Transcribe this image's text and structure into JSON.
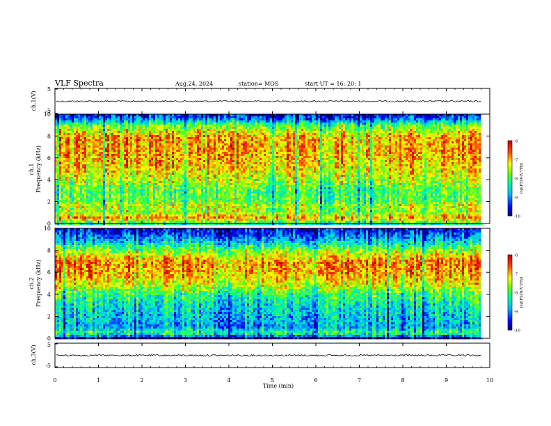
{
  "header": {
    "title": "VLF Spectra",
    "date": "Aug.24, 2024",
    "station": "station= MOS",
    "start": "start  UT =   16: 20: 1"
  },
  "chart_data": [
    {
      "type": "line",
      "ylabel": "ch.1(V)",
      "xlim": [
        0,
        10
      ],
      "ylim": [
        -5,
        5
      ],
      "y_ticks": [
        "5",
        "-5"
      ],
      "baseline": 0,
      "color": "#000000"
    },
    {
      "type": "heatmap",
      "ylabel": "ch.1\nFrequency (kHz)",
      "xlim": [
        0,
        9.8
      ],
      "ylim": [
        0,
        10
      ],
      "y_ticks": [
        "0",
        "2",
        "4",
        "6",
        "8",
        "10"
      ],
      "colorbar": {
        "label": "log(PSD)(V²/Hz)",
        "range": [
          -10,
          -6
        ],
        "ticks": [
          "-6",
          "-7",
          "-8",
          "-9",
          "-10"
        ]
      },
      "intensity_profile": [
        {
          "freq": 0.0,
          "level": -8.2
        },
        {
          "freq": 0.5,
          "level": -6.8
        },
        {
          "freq": 1.0,
          "level": -7.6
        },
        {
          "freq": 1.6,
          "level": -7.4
        },
        {
          "freq": 2.0,
          "level": -7.8
        },
        {
          "freq": 3.0,
          "level": -7.9
        },
        {
          "freq": 4.0,
          "level": -7.4
        },
        {
          "freq": 5.0,
          "level": -7.1
        },
        {
          "freq": 6.0,
          "level": -6.9
        },
        {
          "freq": 7.0,
          "level": -6.8
        },
        {
          "freq": 8.0,
          "level": -6.9
        },
        {
          "freq": 9.0,
          "level": -7.8
        },
        {
          "freq": 9.5,
          "level": -9.0
        },
        {
          "freq": 10.0,
          "level": -9.6
        }
      ]
    },
    {
      "type": "heatmap",
      "ylabel": "ch.2\nFrequency (kHz)",
      "xlim": [
        0,
        9.8
      ],
      "ylim": [
        0,
        10
      ],
      "y_ticks": [
        "0",
        "2",
        "4",
        "6",
        "8",
        "10"
      ],
      "colorbar": {
        "label": "log(PSD)(V²/Hz)",
        "range": [
          -10,
          -6
        ],
        "ticks": [
          "-6",
          "-7",
          "-8",
          "-9",
          "-10"
        ]
      },
      "intensity_profile": [
        {
          "freq": 0.0,
          "level": -9.6
        },
        {
          "freq": 0.5,
          "level": -8.0
        },
        {
          "freq": 1.0,
          "level": -8.8
        },
        {
          "freq": 2.0,
          "level": -8.6
        },
        {
          "freq": 3.0,
          "level": -8.4
        },
        {
          "freq": 4.0,
          "level": -8.0
        },
        {
          "freq": 5.0,
          "level": -7.2
        },
        {
          "freq": 6.0,
          "level": -6.8
        },
        {
          "freq": 7.0,
          "level": -6.7
        },
        {
          "freq": 8.0,
          "level": -7.6
        },
        {
          "freq": 9.0,
          "level": -8.8
        },
        {
          "freq": 10.0,
          "level": -9.6
        }
      ]
    },
    {
      "type": "line",
      "ylabel": "ch.3(V)",
      "xlim": [
        0,
        10
      ],
      "ylim": [
        -5,
        5
      ],
      "y_ticks": [
        "5",
        "-5"
      ],
      "baseline": 0,
      "color": "#000000"
    }
  ],
  "x_axis": {
    "label": "Time (min)",
    "range": [
      0,
      10
    ],
    "ticks": [
      "0",
      "1",
      "2",
      "3",
      "4",
      "5",
      "6",
      "7",
      "8",
      "9",
      "10"
    ]
  }
}
